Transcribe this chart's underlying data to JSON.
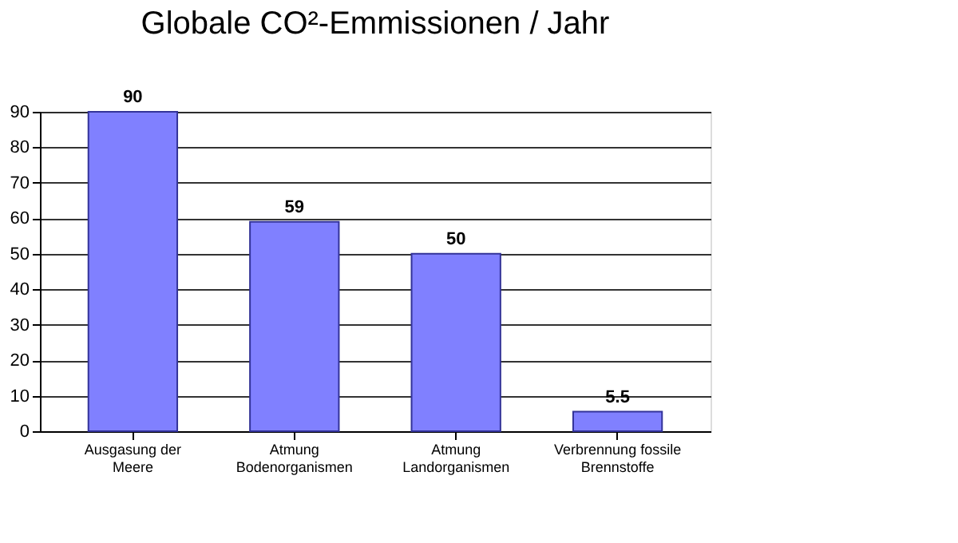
{
  "chart_data": {
    "type": "bar",
    "title": "Globale CO²-Emmissionen / Jahr",
    "categories": [
      "Ausgasung der\nMeere",
      "Atmung\nBodenorganismen",
      "Atmung\nLandorganismen",
      "Verbrennung fossile\nBrennstoffe"
    ],
    "values": [
      90,
      59,
      50,
      5.5
    ],
    "color": "#8080ff",
    "ylim": [
      0,
      90
    ],
    "yticks": [
      0,
      10,
      20,
      30,
      40,
      50,
      60,
      70,
      80,
      90
    ],
    "grid": "y",
    "data_labels": true
  }
}
